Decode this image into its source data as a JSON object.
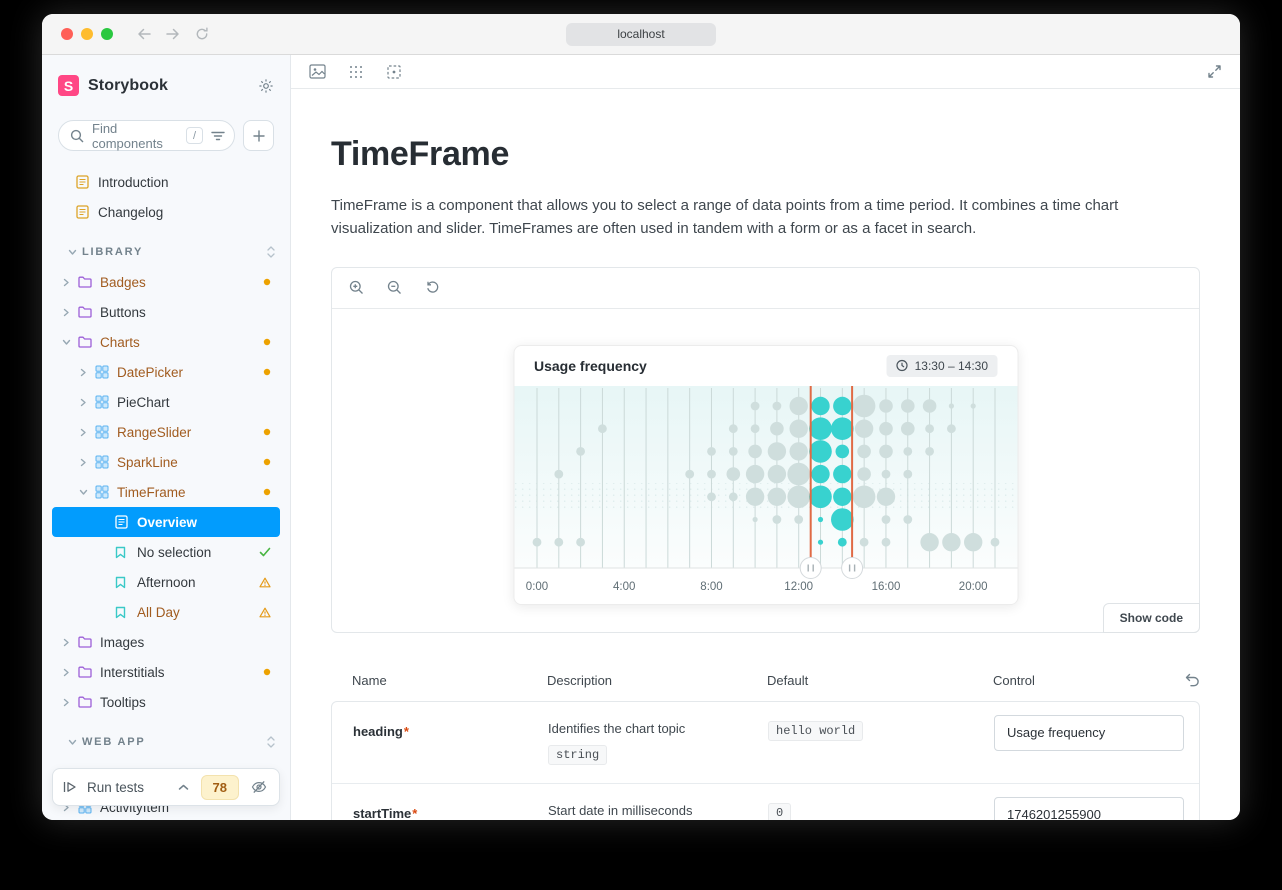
{
  "browser": {
    "url": "localhost"
  },
  "sidebar": {
    "logo_letter": "S",
    "brand": "Storybook",
    "search": {
      "placeholder": "Find components",
      "shortcut": "/"
    },
    "tree": [
      {
        "type": "doc",
        "label": "Introduction",
        "depth": 0
      },
      {
        "type": "doc",
        "label": "Changelog",
        "depth": 0
      },
      {
        "type": "section",
        "label": "LIBRARY"
      },
      {
        "type": "folder",
        "label": "Badges",
        "depth": 0,
        "changed": true,
        "dot": true
      },
      {
        "type": "folder",
        "label": "Buttons",
        "depth": 0
      },
      {
        "type": "folder",
        "label": "Charts",
        "depth": 0,
        "expanded": true,
        "changed": true,
        "dot": true
      },
      {
        "type": "component",
        "label": "DatePicker",
        "depth": 1,
        "changed": true,
        "dot": true
      },
      {
        "type": "component",
        "label": "PieChart",
        "depth": 1
      },
      {
        "type": "component",
        "label": "RangeSlider",
        "depth": 1,
        "changed": true,
        "dot": true
      },
      {
        "type": "component",
        "label": "SparkLine",
        "depth": 1,
        "changed": true,
        "dot": true
      },
      {
        "type": "component",
        "label": "TimeFrame",
        "depth": 1,
        "expanded": true,
        "changed": true,
        "dot": true
      },
      {
        "type": "docpage",
        "label": "Overview",
        "depth": 2,
        "selected": true
      },
      {
        "type": "story",
        "label": "No selection",
        "depth": 2,
        "status": "pass"
      },
      {
        "type": "story",
        "label": "Afternoon",
        "depth": 2,
        "status": "warn"
      },
      {
        "type": "story",
        "label": "All Day",
        "depth": 2,
        "changed": true,
        "status": "warn"
      },
      {
        "type": "folder",
        "label": "Images",
        "depth": 0
      },
      {
        "type": "folder",
        "label": "Interstitials",
        "depth": 0,
        "dot": true
      },
      {
        "type": "folder",
        "label": "Tooltips",
        "depth": 0
      },
      {
        "type": "section",
        "label": "WEB APP"
      },
      {
        "type": "component",
        "label": "ActivityItem",
        "depth": 0,
        "clipped": true
      }
    ],
    "testbar": {
      "label": "Run tests",
      "count": "78"
    }
  },
  "doc": {
    "title": "TimeFrame",
    "description": "TimeFrame is a component that allows you to select a range of data points from a time period. It combines a time chart visualization and slider. TimeFrames are often used in tandem with a form or as a facet in search.",
    "show_code_label": "Show code"
  },
  "chart_data": {
    "type": "bubble-timeframe",
    "title": "Usage frequency",
    "selected_range": "13:30 – 14:30",
    "x_tick_hours": [
      0,
      4,
      8,
      12,
      16,
      20
    ],
    "x_tick_labels": [
      "0:00",
      "4:00",
      "8:00",
      "12:00",
      "16:00",
      "20:00"
    ],
    "hour_columns": 22,
    "rows": 7,
    "selected_columns": [
      13,
      14
    ],
    "slider_positions_hours": [
      12.55,
      14.45
    ],
    "size_radius": {
      "t": 2.6,
      "s": 4.4,
      "m": 6.8,
      "l": 9.2,
      "x": 11.3
    },
    "bubbles": [
      [
        0,
        6,
        "s"
      ],
      [
        1,
        3,
        "s"
      ],
      [
        1,
        6,
        "s"
      ],
      [
        2,
        2,
        "s"
      ],
      [
        2,
        6,
        "s"
      ],
      [
        3,
        1,
        "s"
      ],
      [
        7,
        3,
        "s"
      ],
      [
        8,
        2,
        "s"
      ],
      [
        8,
        3,
        "s"
      ],
      [
        8,
        4,
        "s"
      ],
      [
        9,
        1,
        "s"
      ],
      [
        9,
        2,
        "s"
      ],
      [
        9,
        3,
        "m"
      ],
      [
        9,
        4,
        "s"
      ],
      [
        10,
        0,
        "s"
      ],
      [
        10,
        1,
        "s"
      ],
      [
        10,
        2,
        "m"
      ],
      [
        10,
        3,
        "l"
      ],
      [
        10,
        4,
        "l"
      ],
      [
        10,
        5,
        "t"
      ],
      [
        11,
        0,
        "s"
      ],
      [
        11,
        1,
        "m"
      ],
      [
        11,
        2,
        "l"
      ],
      [
        11,
        3,
        "l"
      ],
      [
        11,
        4,
        "l"
      ],
      [
        11,
        5,
        "s"
      ],
      [
        12,
        0,
        "l"
      ],
      [
        12,
        1,
        "l"
      ],
      [
        12,
        2,
        "l"
      ],
      [
        12,
        3,
        "x"
      ],
      [
        12,
        4,
        "x"
      ],
      [
        12,
        5,
        "s"
      ],
      [
        13,
        0,
        "l"
      ],
      [
        13,
        1,
        "x"
      ],
      [
        13,
        2,
        "x"
      ],
      [
        13,
        3,
        "l"
      ],
      [
        13,
        4,
        "x"
      ],
      [
        13,
        5,
        "t"
      ],
      [
        13,
        6,
        "t"
      ],
      [
        14,
        0,
        "l"
      ],
      [
        14,
        1,
        "x"
      ],
      [
        14,
        2,
        "m"
      ],
      [
        14,
        3,
        "l"
      ],
      [
        14,
        4,
        "l"
      ],
      [
        14,
        5,
        "x"
      ],
      [
        14,
        6,
        "s"
      ],
      [
        15,
        0,
        "x"
      ],
      [
        15,
        1,
        "l"
      ],
      [
        15,
        2,
        "m"
      ],
      [
        15,
        3,
        "m"
      ],
      [
        15,
        4,
        "x"
      ],
      [
        15,
        6,
        "s"
      ],
      [
        16,
        0,
        "m"
      ],
      [
        16,
        1,
        "m"
      ],
      [
        16,
        2,
        "m"
      ],
      [
        16,
        3,
        "s"
      ],
      [
        16,
        4,
        "l"
      ],
      [
        16,
        5,
        "s"
      ],
      [
        16,
        6,
        "s"
      ],
      [
        17,
        0,
        "m"
      ],
      [
        17,
        1,
        "m"
      ],
      [
        17,
        2,
        "s"
      ],
      [
        17,
        3,
        "s"
      ],
      [
        17,
        5,
        "s"
      ],
      [
        18,
        0,
        "m"
      ],
      [
        18,
        1,
        "s"
      ],
      [
        18,
        2,
        "s"
      ],
      [
        18,
        6,
        "l"
      ],
      [
        19,
        0,
        "t"
      ],
      [
        19,
        1,
        "s"
      ],
      [
        19,
        6,
        "l"
      ],
      [
        20,
        0,
        "t"
      ],
      [
        20,
        6,
        "l"
      ],
      [
        21,
        6,
        "s"
      ]
    ],
    "colors": {
      "selected": "#38d2cf",
      "unselected": "#cfdedd",
      "slider": "#e06a45",
      "gridline": "#cbd9d8",
      "plot_top": "#e7f6f6",
      "plot_bottom": "#fbfdfd"
    }
  },
  "args_table": {
    "headers": [
      "Name",
      "Description",
      "Default",
      "Control"
    ],
    "required_marker": "*",
    "rows": [
      {
        "name": "heading",
        "required": true,
        "description": "Identifies the chart topic",
        "type": "string",
        "default": "hello world",
        "control": "Usage frequency"
      },
      {
        "name": "startTime",
        "required": true,
        "description": "Start date in milliseconds",
        "type": "",
        "default": "0",
        "control": "1746201255900"
      }
    ]
  }
}
